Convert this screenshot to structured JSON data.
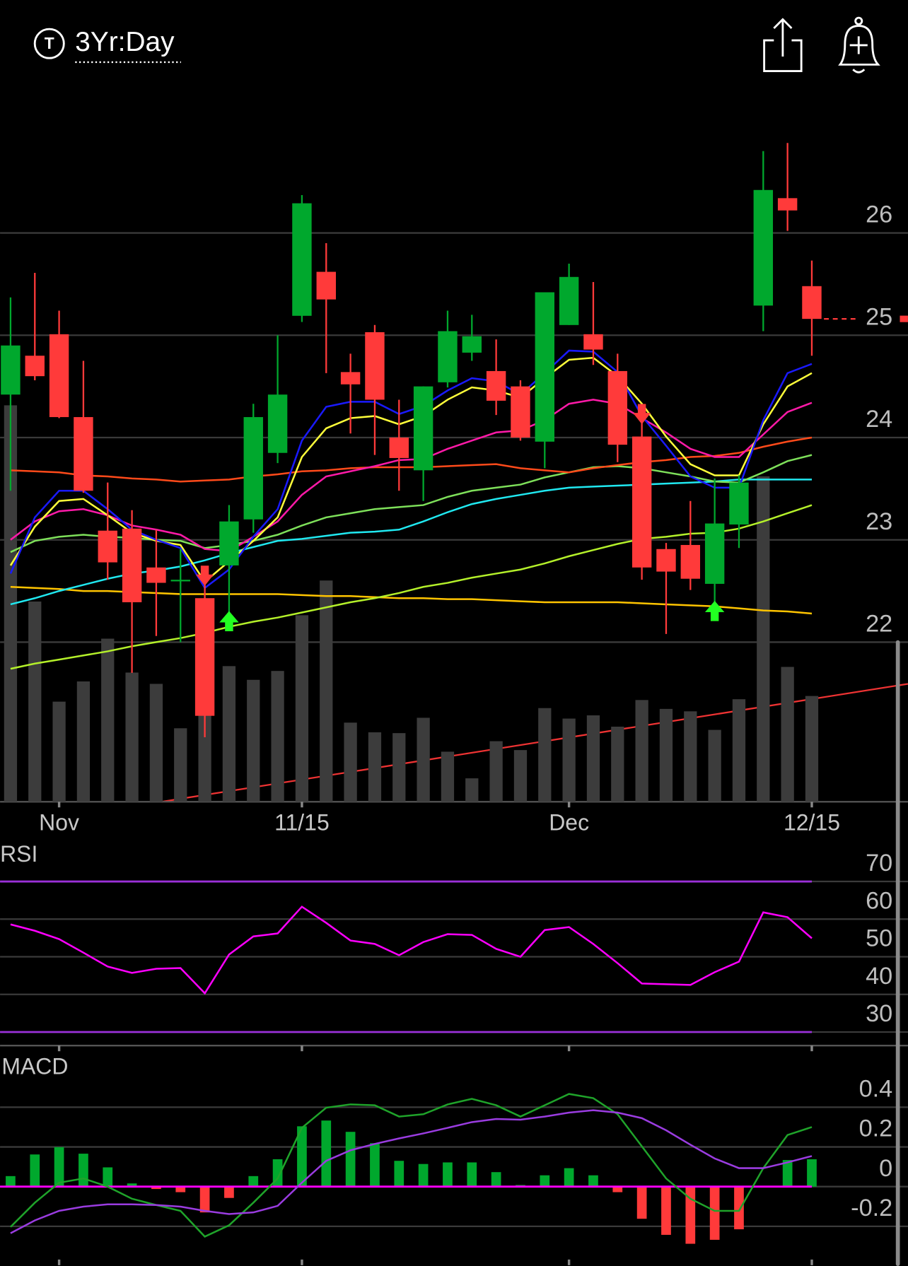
{
  "header": {
    "symbol_icon": "T",
    "timeframe": "3Yr:Day"
  },
  "chart_data": [
    {
      "type": "candlestick",
      "categories": [
        null,
        null,
        "Nov",
        null,
        null,
        null,
        null,
        null,
        null,
        null,
        null,
        null,
        "11/15",
        null,
        null,
        null,
        null,
        null,
        null,
        null,
        null,
        null,
        null,
        "Dec",
        null,
        null,
        null,
        null,
        null,
        null,
        null,
        null,
        null,
        "12/15"
      ],
      "open": [
        24.42,
        24.8,
        25.01,
        24.2,
        23.09,
        23.11,
        22.73,
        22.6,
        22.43,
        22.75,
        23.2,
        23.85,
        25.19,
        25.62,
        24.64,
        25.03,
        24.0,
        23.68,
        24.54,
        24.83,
        24.65,
        24.5,
        23.96,
        25.1,
        25.01,
        24.65,
        24.01,
        22.91,
        22.95,
        22.57,
        23.15,
        25.29,
        26.34,
        25.48
      ],
      "high": [
        25.37,
        25.61,
        25.24,
        24.75,
        23.56,
        23.29,
        23.1,
        22.91,
        22.59,
        23.34,
        24.33,
        25.0,
        26.37,
        25.9,
        24.82,
        25.1,
        24.37,
        24.5,
        25.24,
        25.2,
        24.96,
        24.56,
        25.42,
        25.7,
        25.52,
        24.82,
        24.17,
        22.97,
        23.38,
        23.6,
        23.63,
        26.8,
        26.88,
        25.73
      ],
      "low": [
        23.48,
        24.56,
        24.19,
        23.46,
        22.61,
        21.7,
        22.06,
        22.0,
        21.07,
        22.28,
        23.07,
        23.75,
        25.13,
        24.63,
        24.04,
        23.83,
        23.48,
        23.38,
        24.49,
        24.75,
        24.22,
        23.97,
        23.7,
        25.1,
        24.71,
        23.76,
        22.61,
        22.08,
        22.51,
        22.38,
        22.92,
        25.04,
        26.02,
        24.8
      ],
      "close": [
        24.9,
        24.6,
        24.2,
        23.48,
        22.78,
        22.39,
        22.58,
        22.61,
        21.28,
        23.18,
        24.2,
        24.42,
        26.29,
        25.35,
        24.52,
        24.37,
        23.8,
        24.5,
        25.04,
        24.99,
        24.36,
        24.0,
        25.42,
        25.57,
        24.86,
        23.93,
        22.73,
        22.69,
        22.62,
        23.16,
        23.56,
        26.42,
        26.22,
        25.16
      ],
      "up_color": "#00a82d",
      "down_color": "#ff3a3a",
      "volume": [
        491,
        248,
        124,
        149,
        202,
        160,
        146,
        91,
        110,
        168,
        151,
        162,
        231,
        274,
        98,
        86,
        85,
        104,
        62,
        29,
        75,
        64,
        116,
        103,
        107,
        93,
        126,
        115,
        112,
        89,
        127,
        403,
        167,
        131
      ],
      "volume_color": "#3c3c3c",
      "overlays": [
        {
          "color": "#ffc400",
          "values": [
            22.54,
            22.53,
            22.52,
            22.5,
            22.5,
            22.49,
            22.48,
            22.47,
            22.47,
            22.47,
            22.47,
            22.47,
            22.46,
            22.45,
            22.45,
            22.44,
            22.43,
            22.43,
            22.42,
            22.42,
            22.41,
            22.4,
            22.39,
            22.39,
            22.39,
            22.39,
            22.38,
            22.37,
            22.36,
            22.35,
            22.33,
            22.31,
            22.3,
            22.28
          ]
        },
        {
          "color": "#b4f02a",
          "values": [
            21.74,
            21.79,
            21.83,
            21.87,
            21.91,
            21.96,
            22.0,
            22.04,
            22.09,
            22.15,
            22.2,
            22.24,
            22.29,
            22.34,
            22.39,
            22.43,
            22.48,
            22.54,
            22.58,
            22.63,
            22.67,
            22.71,
            22.77,
            22.84,
            22.9,
            22.96,
            23.01,
            23.03,
            23.06,
            23.07,
            23.11,
            23.18,
            23.26,
            23.34
          ]
        },
        {
          "color": "#20e8f0",
          "values": [
            22.37,
            22.43,
            22.5,
            22.56,
            22.62,
            22.67,
            22.7,
            22.74,
            22.8,
            22.87,
            22.93,
            22.99,
            23.01,
            23.04,
            23.07,
            23.08,
            23.1,
            23.18,
            23.27,
            23.35,
            23.4,
            23.44,
            23.48,
            23.51,
            23.52,
            23.53,
            23.54,
            23.55,
            23.56,
            23.57,
            23.59,
            23.59,
            23.59,
            23.59
          ]
        },
        {
          "color": "#7ee05a",
          "values": [
            22.88,
            22.99,
            23.03,
            23.05,
            23.03,
            23.02,
            23.0,
            22.99,
            22.92,
            22.95,
            22.99,
            23.05,
            23.14,
            23.22,
            23.26,
            23.3,
            23.32,
            23.34,
            23.42,
            23.48,
            23.51,
            23.54,
            23.61,
            23.66,
            23.71,
            23.72,
            23.7,
            23.66,
            23.62,
            23.57,
            23.56,
            23.66,
            23.77,
            23.83
          ]
        },
        {
          "color": "#ff4a1a",
          "values": [
            23.68,
            23.67,
            23.66,
            23.63,
            23.62,
            23.6,
            23.59,
            23.57,
            23.58,
            23.59,
            23.62,
            23.64,
            23.67,
            23.68,
            23.7,
            23.71,
            23.71,
            23.71,
            23.72,
            23.73,
            23.74,
            23.7,
            23.68,
            23.66,
            23.7,
            23.73,
            23.76,
            23.78,
            23.81,
            23.82,
            23.85,
            23.91,
            23.96,
            24.0
          ]
        },
        {
          "color": "#ff1aa8",
          "values": [
            23.0,
            23.18,
            23.28,
            23.3,
            23.24,
            23.14,
            23.1,
            23.05,
            22.91,
            22.89,
            23.03,
            23.18,
            23.44,
            23.62,
            23.67,
            23.72,
            23.78,
            23.79,
            23.89,
            23.97,
            24.05,
            24.07,
            24.17,
            24.33,
            24.37,
            24.33,
            24.19,
            24.05,
            23.89,
            23.81,
            23.81,
            24.03,
            24.25,
            24.34
          ]
        },
        {
          "color": "#ffff3a",
          "values": [
            22.75,
            23.13,
            23.38,
            23.4,
            23.24,
            23.07,
            22.99,
            22.95,
            22.59,
            22.79,
            22.99,
            23.22,
            23.81,
            24.09,
            24.19,
            24.21,
            24.13,
            24.21,
            24.37,
            24.49,
            24.46,
            24.39,
            24.58,
            24.76,
            24.78,
            24.6,
            24.33,
            24.01,
            23.74,
            23.63,
            23.63,
            24.13,
            24.5,
            24.63
          ]
        },
        {
          "color": "#1a1aff",
          "values": [
            22.67,
            23.22,
            23.48,
            23.48,
            23.3,
            23.1,
            23.0,
            22.92,
            22.53,
            22.71,
            23.03,
            23.3,
            23.97,
            24.3,
            24.35,
            24.35,
            24.23,
            24.31,
            24.46,
            24.58,
            24.55,
            24.42,
            24.63,
            24.85,
            24.84,
            24.64,
            24.21,
            23.92,
            23.62,
            23.51,
            23.51,
            24.17,
            24.63,
            24.72
          ]
        }
      ],
      "signals": [
        {
          "index": 8,
          "direction": "down"
        },
        {
          "index": 9,
          "direction": "up"
        },
        {
          "index": 26,
          "direction": "down"
        },
        {
          "index": 29,
          "direction": "up"
        }
      ],
      "ylim": [
        20.44,
        27.33
      ],
      "yticks": [
        22,
        23,
        24,
        25,
        26
      ],
      "grid": true
    },
    {
      "type": "line",
      "title": "RSI",
      "series": [
        {
          "color": "#ff00ff",
          "values": [
            58.6,
            56.9,
            54.7,
            51.1,
            47.4,
            45.7,
            46.8,
            47.0,
            40.3,
            50.6,
            55.4,
            56.2,
            63.3,
            59.0,
            54.3,
            53.4,
            50.4,
            53.9,
            56.0,
            55.8,
            52.1,
            50.0,
            57.1,
            57.9,
            53.4,
            48.3,
            42.9,
            42.7,
            42.5,
            45.9,
            48.7,
            61.8,
            60.5,
            54.9
          ]
        }
      ],
      "bands": [
        30,
        70
      ],
      "band_color": "#9a30d8",
      "ylim": [
        26.4,
        81.1
      ],
      "yticks": [
        30,
        40,
        50,
        60,
        70
      ],
      "grid": true
    },
    {
      "type": "macd",
      "title": "MACD",
      "series": [
        {
          "color": "#1fa32a",
          "values": [
            -0.203,
            -0.081,
            0.02,
            0.041,
            0.0,
            -0.061,
            -0.093,
            -0.122,
            -0.252,
            -0.195,
            -0.081,
            0.041,
            0.296,
            0.398,
            0.414,
            0.41,
            0.353,
            0.365,
            0.414,
            0.442,
            0.41,
            0.353,
            0.41,
            0.467,
            0.446,
            0.365,
            0.203,
            0.041,
            -0.061,
            -0.122,
            -0.122,
            0.093,
            0.26,
            0.3
          ]
        },
        {
          "color": "#9a3ce0",
          "values": [
            -0.235,
            -0.17,
            -0.122,
            -0.101,
            -0.089,
            -0.089,
            -0.093,
            -0.101,
            -0.122,
            -0.138,
            -0.13,
            -0.097,
            0.02,
            0.13,
            0.183,
            0.215,
            0.243,
            0.268,
            0.296,
            0.325,
            0.341,
            0.337,
            0.353,
            0.373,
            0.385,
            0.373,
            0.345,
            0.284,
            0.211,
            0.142,
            0.093,
            0.093,
            0.122,
            0.154
          ]
        }
      ],
      "histogram": {
        "values": [
          0.053,
          0.162,
          0.199,
          0.166,
          0.097,
          0.016,
          -0.012,
          -0.028,
          -0.13,
          -0.057,
          0.053,
          0.138,
          0.304,
          0.333,
          0.276,
          0.219,
          0.13,
          0.114,
          0.122,
          0.122,
          0.073,
          0.008,
          0.057,
          0.093,
          0.057,
          -0.028,
          -0.162,
          -0.243,
          -0.288,
          -0.268,
          -0.215,
          0.004,
          0.134,
          0.138
        ],
        "up_color": "#00a82d",
        "down_color": "#ff3a3a"
      },
      "zero_color": "#ff00ff",
      "ylim": [
        -0.4,
        0.67
      ],
      "yticks": [
        -0.2,
        0,
        0.2,
        0.4
      ],
      "grid": true
    }
  ]
}
